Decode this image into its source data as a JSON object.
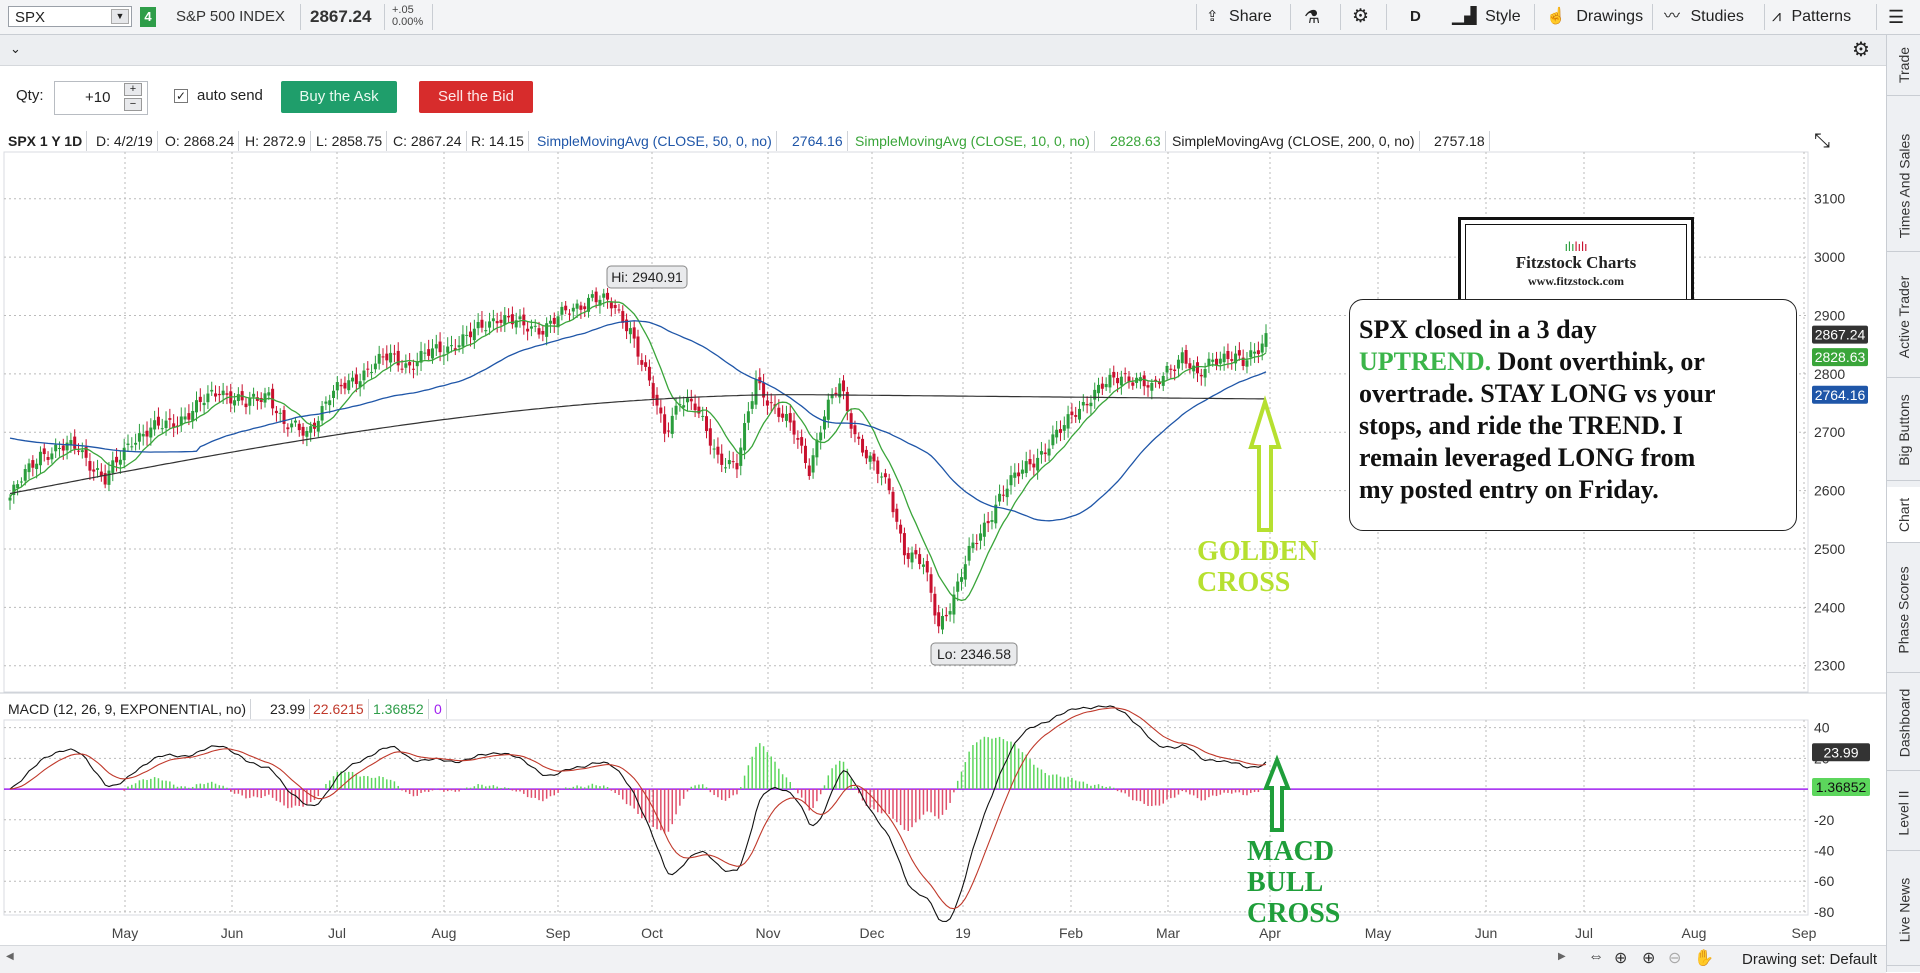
{
  "toolbar": {
    "symbol": "SPX",
    "link_number": "4",
    "instrument_name": "S&P 500 INDEX",
    "last_price": "2867.24",
    "change": "+.05",
    "change_pct": "0.00%",
    "share_label": "Share",
    "period_label": "D",
    "style_label": "Style",
    "drawings_label": "Drawings",
    "studies_label": "Studies",
    "patterns_label": "Patterns"
  },
  "order": {
    "qty_label": "Qty:",
    "qty_value": "+10",
    "auto_send_label": "auto send",
    "buy_label": "Buy the Ask",
    "sell_label": "Sell the Bid"
  },
  "study_header": {
    "title": "SPX 1 Y 1D",
    "date": "D: 4/2/19",
    "open": "O: 2868.24",
    "high": "H: 2872.9",
    "low": "L: 2858.75",
    "close": "C: 2867.24",
    "range": "R: 14.15",
    "sma50_label": "SimpleMovingAvg (CLOSE, 50, 0, no)",
    "sma50_value": "2764.16",
    "sma10_label": "SimpleMovingAvg (CLOSE, 10, 0, no)",
    "sma10_value": "2828.63",
    "sma200_label": "SimpleMovingAvg (CLOSE, 200, 0, no)",
    "sma200_value": "2757.18"
  },
  "macd_header": {
    "label": "MACD (12, 26, 9, EXPONENTIAL, no)",
    "value": "23.99",
    "avg": "22.6215",
    "diff": "1.36852",
    "zero": "0"
  },
  "annotations": {
    "hi_label": "Hi: 2940.91",
    "lo_label": "Lo: 2346.58",
    "commentary_line1": "SPX closed in a 3 day",
    "commentary_uptrend": "UPTREND.",
    "commentary_line2_rest": " Dont overthink, or",
    "commentary_line3": "overtrade.  STAY LONG vs your",
    "commentary_line4": "stops, and ride the TREND.   I",
    "commentary_line5": "remain leveraged LONG from",
    "commentary_line6": "my posted entry on Friday.",
    "golden_cross_line1": "GOLDEN",
    "golden_cross_line2": "CROSS",
    "macd_cross_line1": "MACD",
    "macd_cross_line2": "BULL",
    "macd_cross_line3": "CROSS",
    "logo_title": "Fitzstock Charts",
    "logo_url": "www.fitzstock.com"
  },
  "right_tabs": [
    "Trade",
    "Times And Sales",
    "Active Trader",
    "Big Buttons",
    "Chart",
    "Phase Scores",
    "Dashboard",
    "Level II",
    "Live News"
  ],
  "bottom": {
    "drawing_set": "Drawing set: Default"
  },
  "colors": {
    "up_candle": "#2a9d3c",
    "down_candle": "#c8102e",
    "sma10": "#3aa53a",
    "sma50": "#1f56a8",
    "sma200": "#333333",
    "macd_line": "#111111",
    "macd_avg": "#c0392b",
    "hist_pos": "#5cd65c",
    "hist_neg": "#e0506a",
    "zero_line": "#a020f0",
    "golden": "#b6e030",
    "macd_cross": "#1f9e3a"
  },
  "chart_data": [
    {
      "type": "candlestick",
      "title": "SPX 1 Y 1D",
      "x_ticks": [
        "May",
        "Jun",
        "Jul",
        "Aug",
        "Sep",
        "Oct",
        "Nov",
        "Dec",
        "19",
        "Feb",
        "Mar",
        "Apr",
        "May",
        "Jun",
        "Jul",
        "Aug",
        "Sep"
      ],
      "y_ticks": [
        2300,
        2400,
        2500,
        2600,
        2700,
        2800,
        2900,
        3000,
        3100
      ],
      "ylim": [
        2255,
        3180
      ],
      "price_tags": [
        "2867.24",
        "2828.63",
        "2764.16"
      ],
      "closes_approx": [
        {
          "month": "Apr 2018",
          "close": 2620
        },
        {
          "month": "May 2018",
          "close": 2705
        },
        {
          "month": "Jun 2018",
          "close": 2718
        },
        {
          "month": "Jul 2018",
          "close": 2816
        },
        {
          "month": "Aug 2018",
          "close": 2901
        },
        {
          "month": "Sep 2018",
          "close": 2914
        },
        {
          "month": "Oct 2018",
          "close": 2711
        },
        {
          "month": "Nov 2018",
          "close": 2760
        },
        {
          "month": "Dec 2018",
          "close": 2507
        },
        {
          "month": "Jan 2019",
          "close": 2704
        },
        {
          "month": "Feb 2019",
          "close": 2784
        },
        {
          "month": "Mar 2019",
          "close": 2834
        },
        {
          "month": "Apr 2 2019",
          "close": 2867.24
        }
      ],
      "high": 2940.91,
      "low": 2346.58,
      "series": [
        {
          "name": "SimpleMovingAvg (CLOSE, 10, 0, no)",
          "last": 2828.63
        },
        {
          "name": "SimpleMovingAvg (CLOSE, 50, 0, no)",
          "last": 2764.16
        },
        {
          "name": "SimpleMovingAvg (CLOSE, 200, 0, no)",
          "last": 2757.18
        }
      ]
    },
    {
      "type": "macd",
      "title": "MACD (12, 26, 9, EXPONENTIAL, no)",
      "y_ticks": [
        40,
        20,
        0,
        -20,
        -40,
        -60,
        -80
      ],
      "ylim": [
        -82,
        45
      ],
      "value_tags": [
        "23.99",
        "1.36852"
      ],
      "series": [
        {
          "name": "MACD",
          "last": 23.99
        },
        {
          "name": "Avg",
          "last": 22.6215
        },
        {
          "name": "Diff",
          "last": 1.36852
        }
      ]
    }
  ]
}
